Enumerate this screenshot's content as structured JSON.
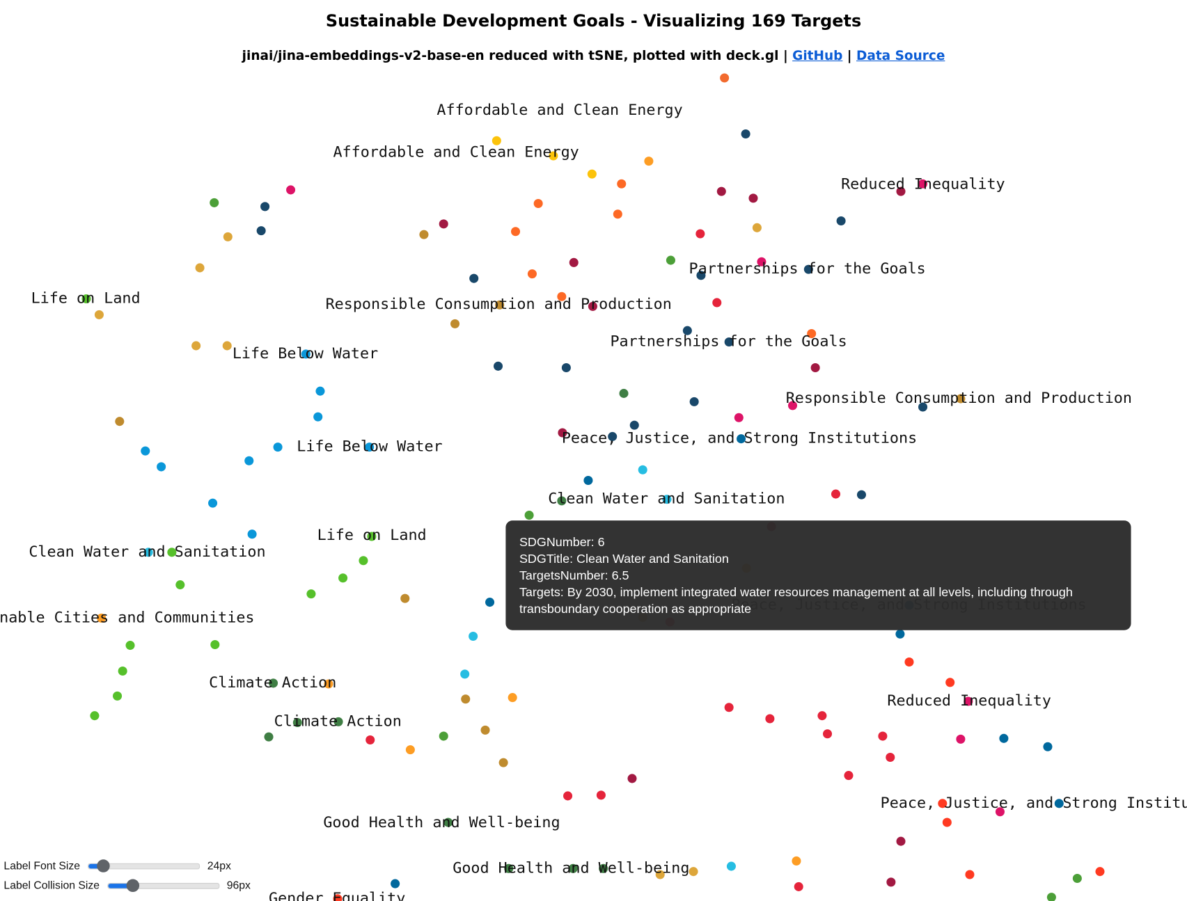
{
  "header": {
    "title": "Sustainable Development Goals - Visualizing 169 Targets",
    "subtitle": "jinai/jina-embeddings-v2-base-en reduced with tSNE, plotted with deck.gl",
    "separator": "|",
    "links": [
      "GitHub",
      "Data Source"
    ]
  },
  "labels": [
    "Affordable and Clean Energy",
    "Affordable and Clean Energy",
    "Reduced Inequality",
    "Life on Land",
    "Responsible Consumption and Production",
    "Partnerships for the Goals",
    "Partnerships for the Goals",
    "Life Below Water",
    "Responsible Consumption and Production",
    "Peace, Justice, and Strong Institutions",
    "Life Below Water",
    "Clean Water and Sanitation",
    "Life on Land",
    "Clean Water and Sanitation",
    "Sustainable Cities and Communities",
    "Peace, Justice, and Strong Institutions",
    "Climate Action",
    "Reduced Inequality",
    "Climate Action",
    "Peace, Justice, and Strong Institutions",
    "Good Health and Well-being",
    "Good Health and Well-being",
    "Gender Equality"
  ],
  "tooltip": {
    "lines": [
      "SDGNumber: 6",
      "SDGTitle: Clean Water and Sanitation",
      "TargetsNumber: 6.5",
      "Targets: By 2030, implement integrated water resources management at all levels, including through transboundary cooperation as appropriate"
    ]
  },
  "controls": [
    {
      "label": "Label Font Size",
      "value": "24px"
    },
    {
      "label": "Label Collision Size",
      "value": "96px"
    }
  ]
}
